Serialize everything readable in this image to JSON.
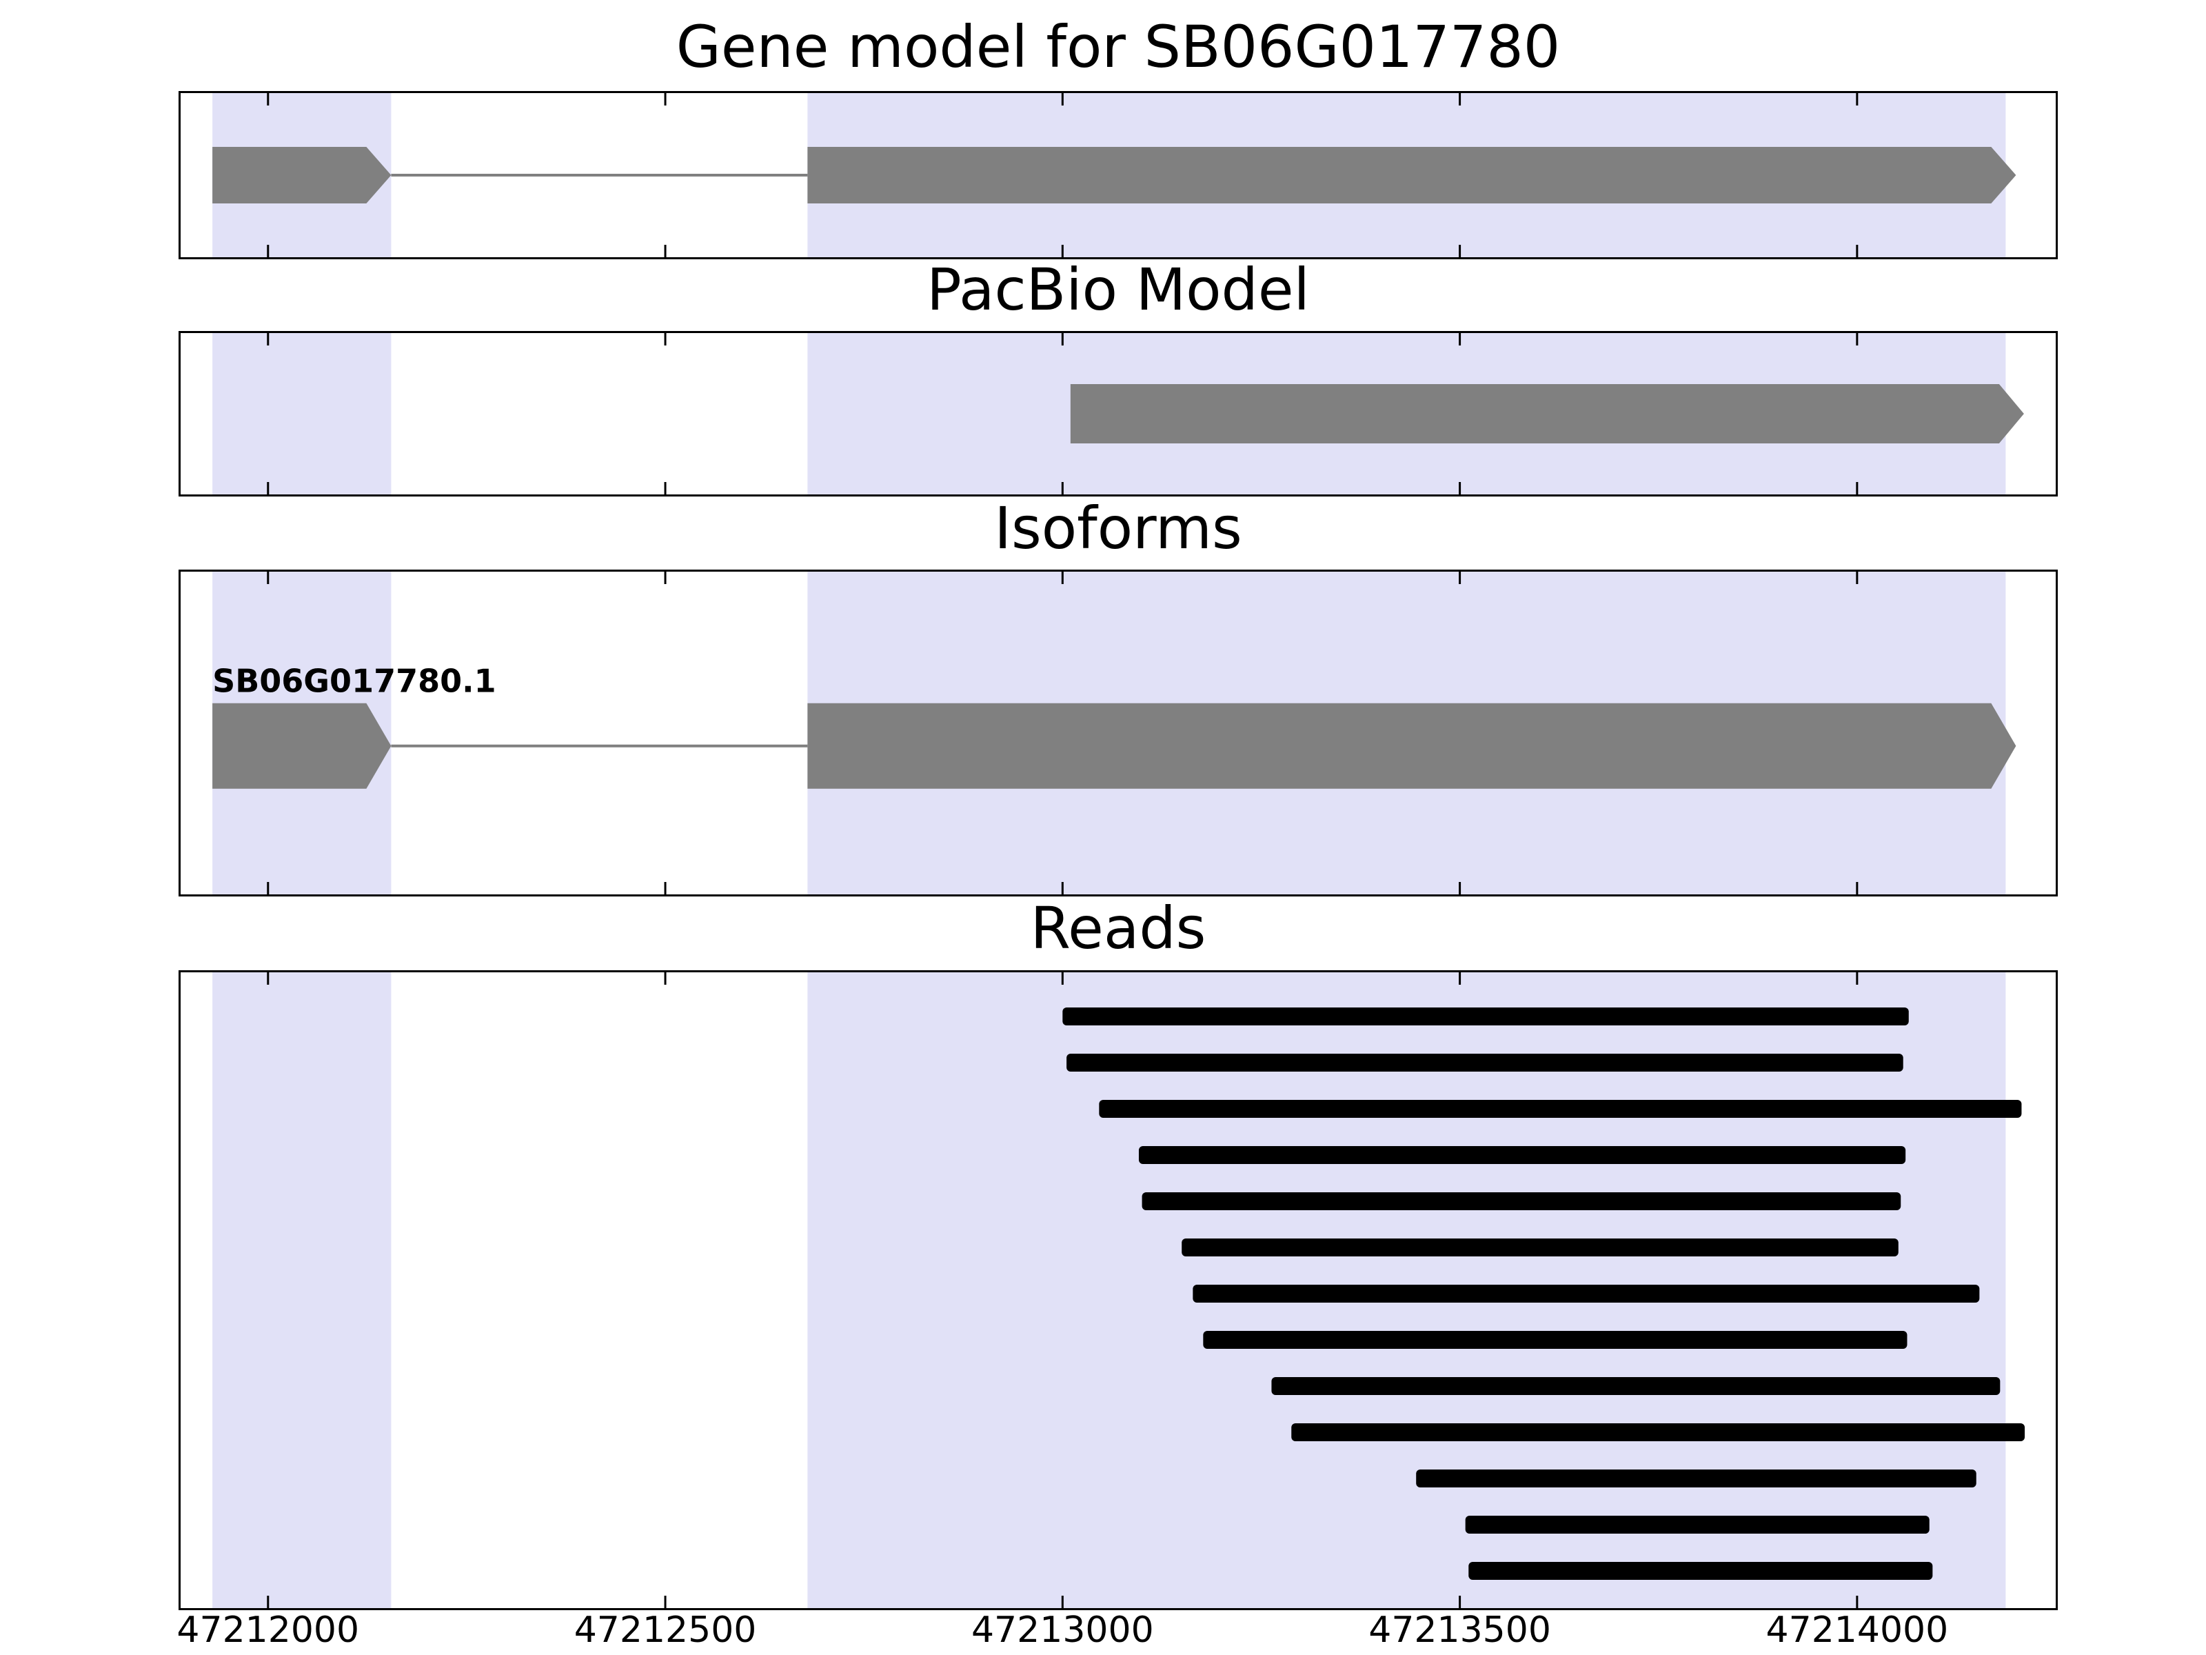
{
  "chart_data": {
    "type": "genome-browser",
    "x_axis": {
      "min": 47211890,
      "max": 47214250,
      "ticks": [
        47212000,
        47212500,
        47213000,
        47213500,
        47214000
      ],
      "tick_labels": [
        "47212000",
        "47212500",
        "47213000",
        "47213500",
        "47214000"
      ]
    },
    "highlight_regions": [
      {
        "start": 47211930,
        "end": 47212155
      },
      {
        "start": 47212679,
        "end": 47214187
      }
    ],
    "colors": {
      "highlight": "#e1e1f7",
      "feature": "#808080",
      "read": "#000000",
      "panel_border": "#000000"
    },
    "panels": [
      {
        "title": "Gene model for SB06G017780",
        "kind": "gene_model",
        "features": [
          {
            "type": "exon",
            "start": 47211930,
            "end": 47212155,
            "arrow": true
          },
          {
            "type": "intron",
            "start": 47212155,
            "end": 47212679
          },
          {
            "type": "exon",
            "start": 47212679,
            "end": 47214200,
            "arrow": true
          }
        ]
      },
      {
        "title": "PacBio Model",
        "kind": "gene_model",
        "features": [
          {
            "type": "exon",
            "start": 47213010,
            "end": 47214210,
            "arrow": true
          }
        ]
      },
      {
        "title": "Isoforms",
        "kind": "gene_model",
        "isoform_label": "SB06G017780.1",
        "features": [
          {
            "type": "exon",
            "start": 47211930,
            "end": 47212155,
            "arrow": true
          },
          {
            "type": "intron",
            "start": 47212155,
            "end": 47212679
          },
          {
            "type": "exon",
            "start": 47212679,
            "end": 47214200,
            "arrow": true
          }
        ]
      },
      {
        "title": "Reads",
        "kind": "reads",
        "reads": [
          {
            "start": 47213000,
            "end": 47214065
          },
          {
            "start": 47213005,
            "end": 47214058
          },
          {
            "start": 47213046,
            "end": 47214207
          },
          {
            "start": 47213096,
            "end": 47214061
          },
          {
            "start": 47213100,
            "end": 47214055
          },
          {
            "start": 47213150,
            "end": 47214052
          },
          {
            "start": 47213164,
            "end": 47214154
          },
          {
            "start": 47213177,
            "end": 47214063
          },
          {
            "start": 47213263,
            "end": 47214180
          },
          {
            "start": 47213288,
            "end": 47214211
          },
          {
            "start": 47213445,
            "end": 47214150
          },
          {
            "start": 47213507,
            "end": 47214091
          },
          {
            "start": 47213511,
            "end": 47214095
          }
        ]
      }
    ]
  }
}
